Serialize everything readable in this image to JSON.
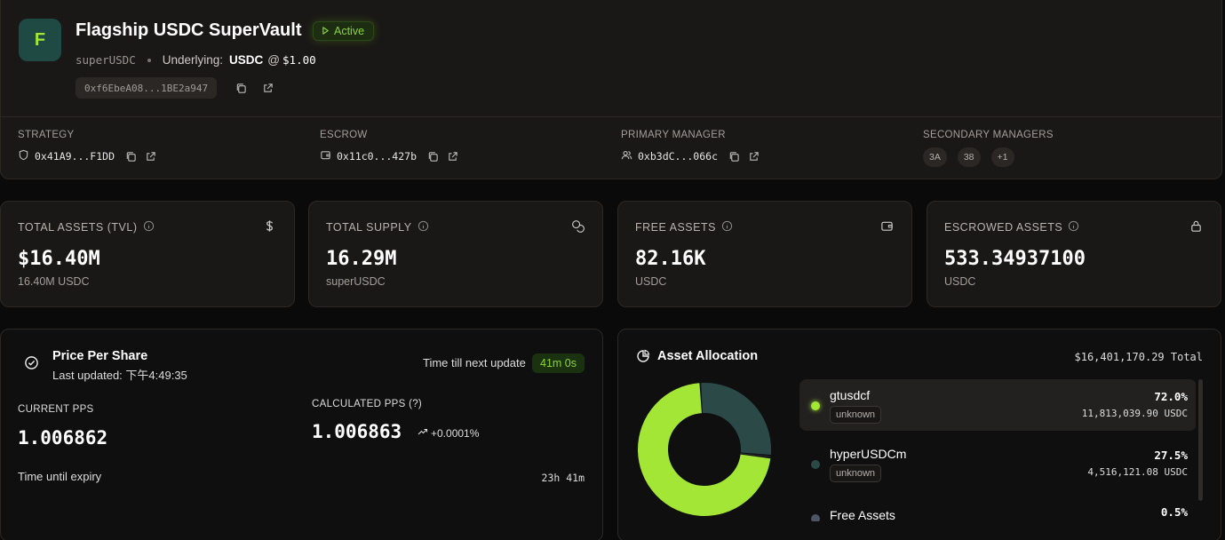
{
  "vault": {
    "logo_letter": "F",
    "title": "Flagship USDC SuperVault",
    "status": "Active",
    "symbol": "superUSDC",
    "underlying_label": "Underlying:",
    "underlying_token": "USDC",
    "at_sign": "@",
    "underlying_price": "$1.00",
    "address_short": "0xf6EbeA08...1BE2a947"
  },
  "roles": {
    "strategy": {
      "label": "STRATEGY",
      "address": "0x41A9...F1DD"
    },
    "escrow": {
      "label": "ESCROW",
      "address": "0x11c0...427b"
    },
    "primary_manager": {
      "label": "PRIMARY MANAGER",
      "address": "0xb3dC...066c"
    },
    "secondary_managers": {
      "label": "SECONDARY MANAGERS",
      "chips": [
        "3A",
        "38",
        "+1"
      ]
    }
  },
  "stats": [
    {
      "label": "TOTAL ASSETS (TVL)",
      "value": "$16.40M",
      "sub": "16.40M USDC",
      "icon": "dollar-icon"
    },
    {
      "label": "TOTAL SUPPLY",
      "value": "16.29M",
      "sub": "superUSDC",
      "icon": "coins-icon"
    },
    {
      "label": "FREE ASSETS",
      "value": "82.16K",
      "sub": "USDC",
      "icon": "wallet-icon"
    },
    {
      "label": "ESCROWED ASSETS",
      "value": "533.34937100",
      "sub": "USDC",
      "icon": "lock-icon"
    }
  ],
  "pps": {
    "title": "Price Per Share",
    "last_updated": "Last updated: 下午4:49:35",
    "next_update_label": "Time till next update",
    "next_update_value": "41m 0s",
    "current_label": "CURRENT PPS",
    "current_value": "1.006862",
    "calculated_label": "CALCULATED PPS (?)",
    "calculated_value": "1.006863",
    "calculated_delta": "+0.0001%",
    "expiry_label": "Time until expiry",
    "expiry_value": "23h 41m"
  },
  "allocation": {
    "title": "Asset Allocation",
    "total": "$16,401,170.29 Total",
    "items": [
      {
        "name": "gtusdcf",
        "tag": "unknown",
        "pct": "72.0%",
        "amount": "11,813,039.90 USDC",
        "color": "#a3e635",
        "share": 0.72
      },
      {
        "name": "hyperUSDCm",
        "tag": "unknown",
        "pct": "27.5%",
        "amount": "4,516,121.08 USDC",
        "color": "#2b4a47",
        "share": 0.275
      },
      {
        "name": "Free Assets",
        "tag": "",
        "pct": "0.5%",
        "amount": "",
        "color": "#4b5563",
        "share": 0.005
      }
    ]
  },
  "colors": {
    "accent": "#a3e635",
    "accent_dark": "#2b4a47",
    "panel": "#1a1817",
    "background": "#0a0a0a"
  }
}
